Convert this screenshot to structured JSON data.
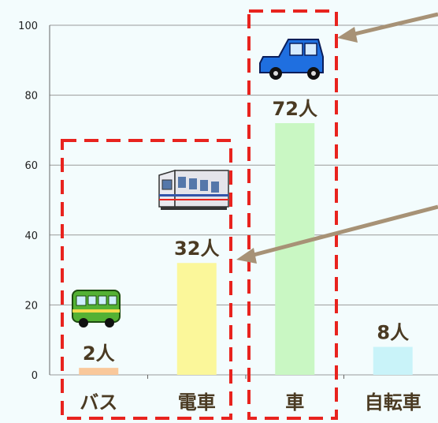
{
  "chart_data": {
    "type": "bar",
    "categories": [
      "バス",
      "電車",
      "車",
      "自転車"
    ],
    "values": [
      2,
      32,
      72,
      8
    ],
    "data_labels": [
      "2人",
      "32人",
      "72人",
      "8人"
    ],
    "bar_colors": [
      "#f9c89b",
      "#fbf79a",
      "#c9f7c3",
      "#c9f3f9"
    ],
    "yticks": [
      0,
      20,
      40,
      60,
      80,
      100
    ],
    "ylim": [
      0,
      100
    ],
    "grid": true,
    "highlight_color": "#e8231e",
    "arrow_color": "#a79276",
    "icons": [
      "bus-icon",
      "train-icon",
      "car-icon"
    ]
  }
}
